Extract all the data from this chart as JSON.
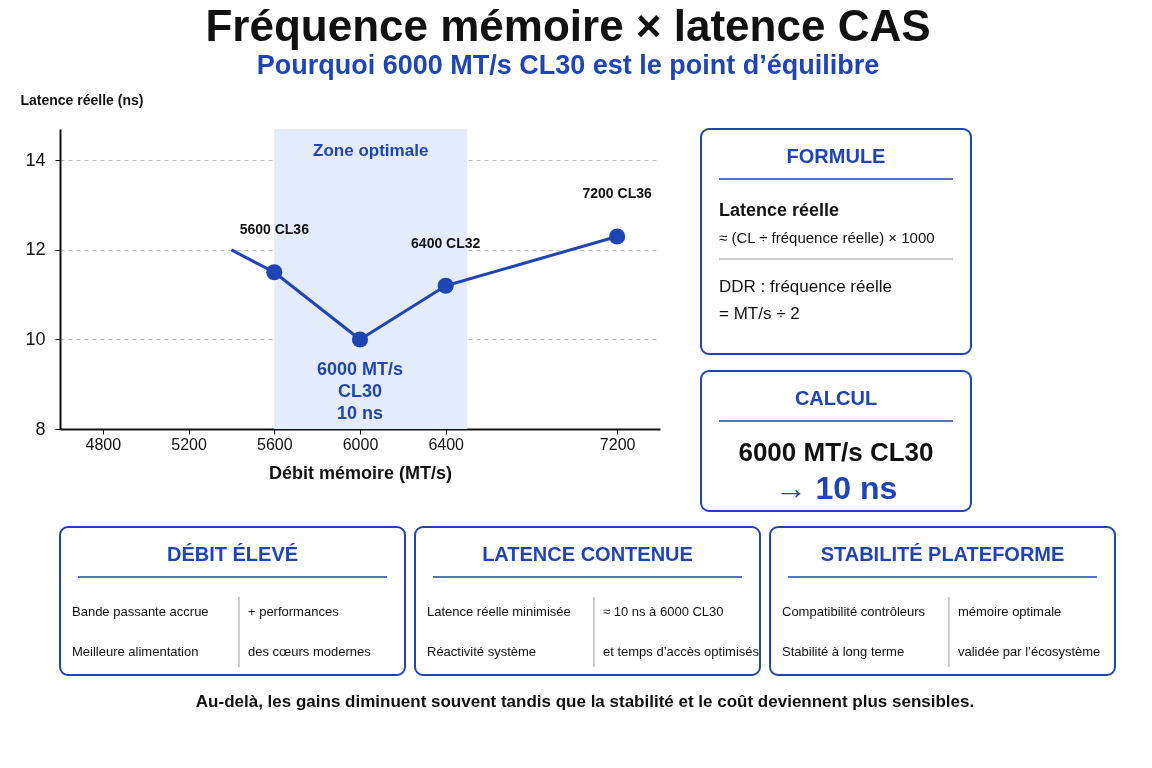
{
  "chart_data": [
    {
      "type": "line",
      "title": "Fréquence mémoire × latence CAS",
      "subtitle": "Pourquoi 6000 MT/s CL30 est le point d’équilibre",
      "xlabel": "Débit mémoire (MT/s)",
      "ylabel": "Latence réelle (ns)",
      "series": [
        {
          "type": "line",
          "marker": "none",
          "color": "#1f45b5",
          "x": [
            5400,
            5600,
            6000,
            6400,
            7200
          ],
          "values": [
            12.0,
            11.5,
            10.0,
            11.2,
            12.3
          ]
        },
        {
          "type": "scatter",
          "marker": "circle",
          "color": "#1f45b5",
          "x": [
            5600,
            6000,
            6400,
            7200
          ],
          "values": [
            11.5,
            10.0,
            11.2,
            12.3
          ]
        }
      ],
      "xlim": [
        4600,
        7400
      ],
      "xticks": [
        4800,
        5200,
        5600,
        6000,
        6400,
        7200
      ],
      "ylim": [
        8,
        14.7
      ],
      "yticks": [
        8,
        10,
        12,
        14
      ],
      "grid": "y",
      "bands": [
        {
          "axis": "x",
          "from": 5600,
          "to": 6500,
          "label": "Zone optimale",
          "color": "#e4ecfb"
        }
      ],
      "annotations": [
        {
          "text": "5600 CL36",
          "x": 5600,
          "y": 11.5
        },
        {
          "text": "6400 CL32",
          "x": 6400,
          "y": 11.2
        },
        {
          "text": "7200 CL36",
          "x": 7200,
          "y": 12.3
        },
        {
          "text": "6000 MT/s\nCL30\n10 ns",
          "x": 6000,
          "y": 10.0
        },
        "Au-delà, les gains diminuent souvent tandis que la stabilité et le coût deviennent plus sensibles."
      ]
    },
    {
      "type": "other",
      "title": "FORMULE",
      "annotations": [
        "Latence réelle",
        "≈ (CL ÷ fréquence réelle) × 1000",
        "DDR : fréquence réelle",
        "= MT/s ÷ 2"
      ]
    },
    {
      "type": "other",
      "title": "CALCUL",
      "annotations": [
        "6000 MT/s CL30",
        "→ 10 ns"
      ]
    },
    {
      "type": "other",
      "title": "DÉBIT ÉLEVÉ",
      "annotations": [
        "Bande passante accrue",
        "+ performances",
        "Meilleure alimentation",
        "des cœurs modernes"
      ]
    },
    {
      "type": "other",
      "title": "LATENCE CONTENUE",
      "annotations": [
        "Latence réelle minimisée",
        "≈ 10 ns à 6000 CL30",
        "Réactivité système",
        "et temps d’accès optimisés"
      ]
    },
    {
      "type": "other",
      "title": "STABILITÉ PLATEFORME",
      "annotations": [
        "Compatibilité contrôleurs",
        "mémoire optimale",
        "Stabilité à long terme",
        "validée par l’écosystème"
      ]
    }
  ]
}
